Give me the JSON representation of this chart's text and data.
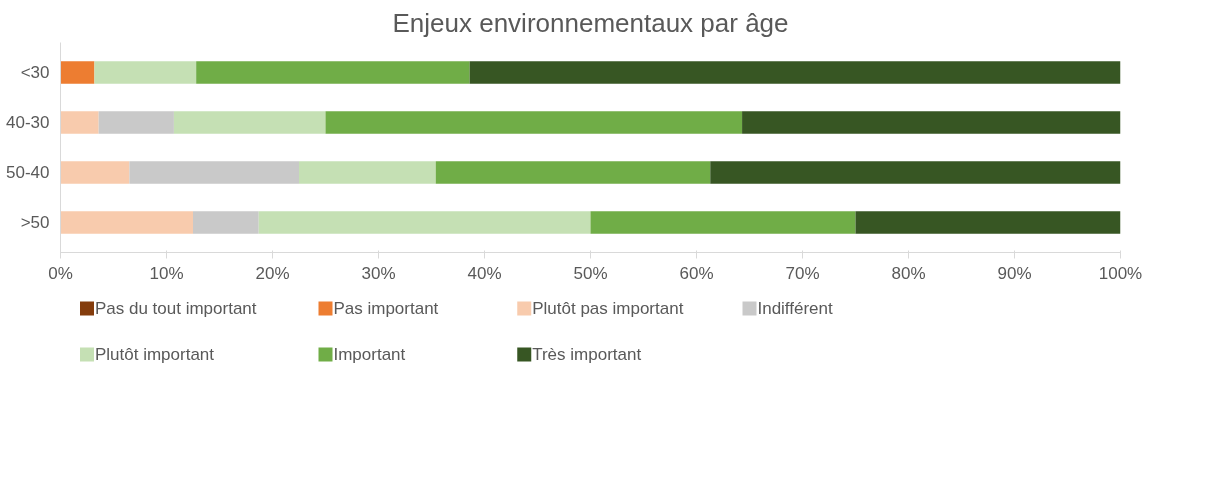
{
  "chart_data": {
    "type": "bar",
    "orientation": "horizontal",
    "stacked": true,
    "title": "Enjeux environnementaux par âge",
    "categories": [
      "<30",
      "40-30",
      "50-40",
      ">50"
    ],
    "series": [
      {
        "name": "Pas du tout important",
        "color": "#843c0c",
        "values": [
          0,
          0,
          0,
          0
        ]
      },
      {
        "name": "Pas important",
        "color": "#ed7d31",
        "values": [
          3.2,
          0,
          0,
          0
        ]
      },
      {
        "name": "Plutôt pas important",
        "color": "#f8cbad",
        "values": [
          0,
          3.6,
          6.5,
          12.5
        ]
      },
      {
        "name": "Indifférent",
        "color": "#c9c9c9",
        "values": [
          0,
          7.1,
          16.0,
          6.2
        ]
      },
      {
        "name": "Plutôt important",
        "color": "#c5e0b4",
        "values": [
          9.6,
          14.3,
          12.9,
          31.3
        ]
      },
      {
        "name": "Important",
        "color": "#70ad47",
        "values": [
          25.8,
          39.3,
          25.9,
          25.0
        ]
      },
      {
        "name": "Très important",
        "color": "#375623",
        "values": [
          61.4,
          35.7,
          38.7,
          25.0
        ]
      }
    ],
    "xlim": [
      0,
      100
    ],
    "xticks": [
      {
        "value": 0,
        "label": "0%"
      },
      {
        "value": 10,
        "label": "10%"
      },
      {
        "value": 20,
        "label": "20%"
      },
      {
        "value": 30,
        "label": "30%"
      },
      {
        "value": 40,
        "label": "40%"
      },
      {
        "value": 50,
        "label": "50%"
      },
      {
        "value": 60,
        "label": "60%"
      },
      {
        "value": 70,
        "label": "70%"
      },
      {
        "value": 80,
        "label": "80%"
      },
      {
        "value": 90,
        "label": "90%"
      },
      {
        "value": 100,
        "label": "100%"
      }
    ],
    "grid": false,
    "legend": "bottom"
  }
}
